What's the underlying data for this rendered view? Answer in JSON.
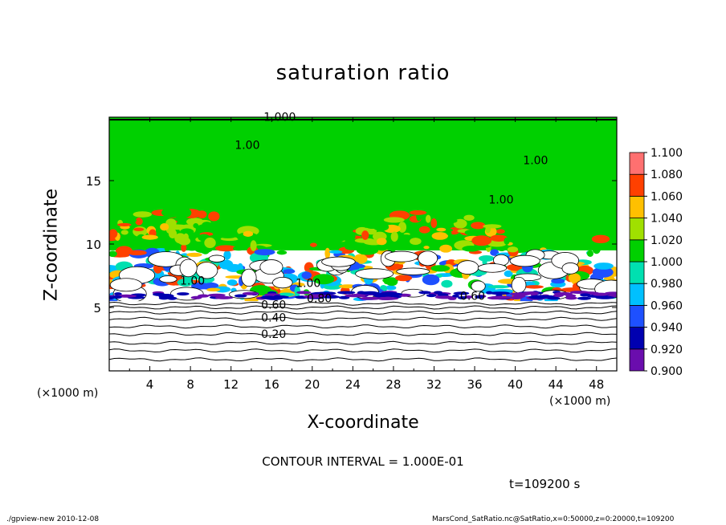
{
  "chart_data": {
    "type": "heatmap",
    "title": "saturation ratio",
    "xlabel": "X-coordinate",
    "ylabel": "Z-coordinate",
    "x_unit_note": "(×1000 m)",
    "xlim": [
      0,
      50
    ],
    "ylim": [
      0,
      20
    ],
    "x_ticks": [
      4,
      8,
      12,
      16,
      20,
      24,
      28,
      32,
      36,
      40,
      44,
      48
    ],
    "y_ticks": [
      5,
      10,
      15
    ],
    "colorbar": {
      "levels": [
        "0.900",
        "0.920",
        "0.940",
        "0.960",
        "0.980",
        "1.000",
        "1.020",
        "1.040",
        "1.060",
        "1.080",
        "1.100"
      ],
      "colors": [
        "#6a0dad",
        "#0000b0",
        "#1e50ff",
        "#00c0ff",
        "#00e0b0",
        "#00d000",
        "#a0e000",
        "#ffc000",
        "#ff4000",
        "#ff7070"
      ]
    },
    "contour_labels": [
      {
        "text": "1.000",
        "x": 16.8,
        "z": 19.7
      },
      {
        "text": "1.00",
        "x": 13.6,
        "z": 17.5
      },
      {
        "text": "1.00",
        "x": 42.0,
        "z": 16.3
      },
      {
        "text": "1.00",
        "x": 38.6,
        "z": 13.2
      },
      {
        "text": "1.00",
        "x": 8.2,
        "z": 6.8
      },
      {
        "text": "1.00",
        "x": 19.6,
        "z": 6.6
      },
      {
        "text": "0.80",
        "x": 20.7,
        "z": 5.4
      },
      {
        "text": "0.60",
        "x": 16.2,
        "z": 4.9
      },
      {
        "text": "0.40",
        "x": 16.2,
        "z": 3.9
      },
      {
        "text": "0.20",
        "x": 16.2,
        "z": 2.6
      },
      {
        "text": "0.60",
        "x": 35.8,
        "z": 5.6
      }
    ],
    "dry_layer_contours_z": [
      0.9,
      1.6,
      2.2,
      2.9,
      3.5,
      4.1,
      4.6,
      5.0,
      5.3
    ],
    "contour_interval_text": "CONTOUR INTERVAL = 1.000E-01",
    "time_text": "t=109200 s"
  },
  "footer": {
    "left": "./gpview-new  2010-12-08",
    "right": "MarsCond_SatRatio.nc@SatRatio,x=0:50000,z=0:20000,t=109200"
  }
}
